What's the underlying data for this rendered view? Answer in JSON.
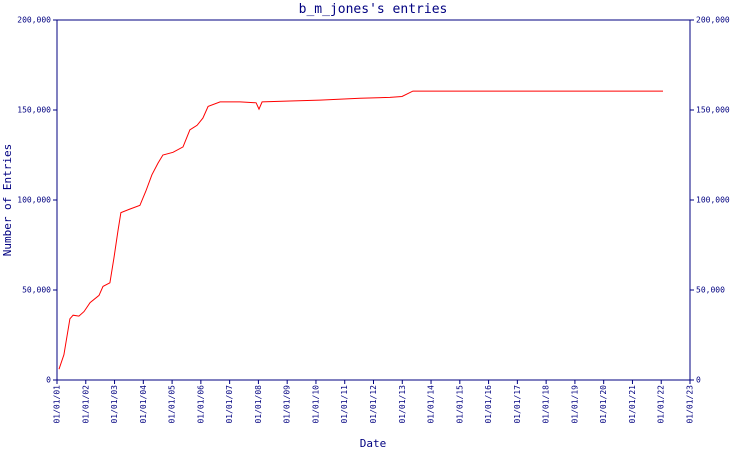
{
  "chart_data": {
    "type": "line",
    "title": "b_m_jones's entries",
    "x_label": "Date",
    "y_label": "Number of Entries",
    "color": "#ff0000",
    "x": [
      1.07,
      1.24,
      1.45,
      1.56,
      1.76,
      1.94,
      2.15,
      2.46,
      2.6,
      2.84,
      2.98,
      3.12,
      3.22,
      3.54,
      3.88,
      4.09,
      4.3,
      4.51,
      4.68,
      5.03,
      5.38,
      5.62,
      5.87,
      6.07,
      6.25,
      6.67,
      7.36,
      7.92,
      8.02,
      8.13,
      9.1,
      10.14,
      11.53,
      12.57,
      12.99,
      13.37,
      22.06
    ],
    "values": [
      6000,
      14000,
      34000,
      36000,
      35500,
      38000,
      43000,
      47000,
      52000,
      54000,
      68000,
      83000,
      93000,
      95000,
      97000,
      105000,
      114000,
      120500,
      125000,
      126500,
      129500,
      139000,
      141500,
      145500,
      152000,
      154500,
      154500,
      154000,
      150500,
      154500,
      155000,
      155500,
      156500,
      157000,
      157500,
      160500,
      160500
    ],
    "xlim": [
      1,
      23
    ],
    "xticks": [
      {
        "value": 1,
        "label": "01/01/01"
      },
      {
        "value": 2,
        "label": "01/01/02"
      },
      {
        "value": 3,
        "label": "01/01/03"
      },
      {
        "value": 4,
        "label": "01/01/04"
      },
      {
        "value": 5,
        "label": "01/01/05"
      },
      {
        "value": 6,
        "label": "01/01/06"
      },
      {
        "value": 7,
        "label": "01/01/07"
      },
      {
        "value": 8,
        "label": "01/01/08"
      },
      {
        "value": 9,
        "label": "01/01/09"
      },
      {
        "value": 10,
        "label": "01/01/10"
      },
      {
        "value": 11,
        "label": "01/01/11"
      },
      {
        "value": 12,
        "label": "01/01/12"
      },
      {
        "value": 13,
        "label": "01/01/13"
      },
      {
        "value": 14,
        "label": "01/01/14"
      },
      {
        "value": 15,
        "label": "01/01/15"
      },
      {
        "value": 16,
        "label": "01/01/16"
      },
      {
        "value": 17,
        "label": "01/01/17"
      },
      {
        "value": 18,
        "label": "01/01/18"
      },
      {
        "value": 19,
        "label": "01/01/19"
      },
      {
        "value": 20,
        "label": "01/01/20"
      },
      {
        "value": 21,
        "label": "01/01/21"
      },
      {
        "value": 22,
        "label": "01/01/22"
      },
      {
        "value": 23,
        "label": "01/01/23"
      }
    ],
    "ylim": [
      0,
      200000
    ],
    "yticks": [
      0,
      {
        "value": 50000,
        "label": "50,000"
      },
      {
        "value": 100000,
        "label": "100,000"
      },
      {
        "value": 150000,
        "label": "150,000"
      },
      {
        "value": 200000,
        "label": "200,000"
      }
    ],
    "y2lim": [
      0,
      200000
    ],
    "y2ticks": [
      0,
      {
        "value": 50000,
        "label": "50,000"
      },
      {
        "value": 100000,
        "label": "100,000"
      },
      {
        "value": 150000,
        "label": "150,000"
      },
      {
        "value": 200000,
        "label": "200,000"
      }
    ],
    "grid": false
  }
}
